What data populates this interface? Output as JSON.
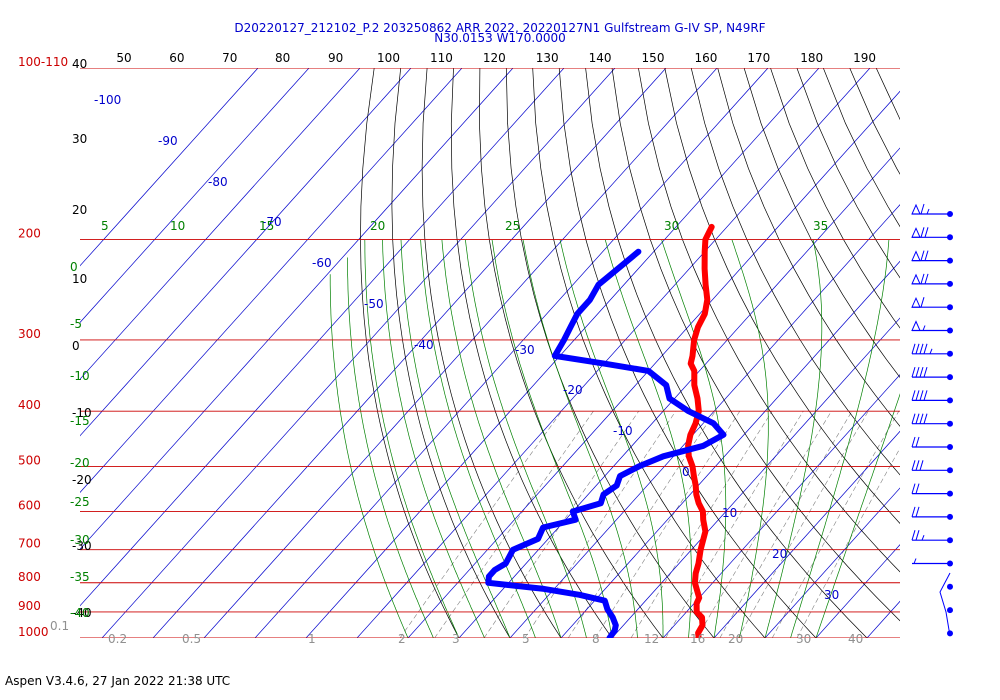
{
  "header": {
    "line1": "D20220127_212102_P.2 203250862 ARR 2022, 20220127N1 Gulfstream G-IV SP, N49RF",
    "line2": "N30.0153 W170.0000"
  },
  "footer": "Aspen V3.4.6, 27 Jan 2022  21:38 UTC",
  "chart_data": {
    "type": "line",
    "title": "D20220127_212102_P.2 203250862 ARR 2022, 20220127N1 Gulfstream G-IV SP, N49RF",
    "subtitle": "N30.0153 W170.0000",
    "pressure_labels": [
      "100-110",
      "200",
      "300",
      "400",
      "500",
      "600",
      "700",
      "800",
      "900",
      "1000"
    ],
    "top_temp_labels": [
      "50",
      "60",
      "70",
      "80",
      "90",
      "100",
      "110",
      "120",
      "130",
      "140",
      "150",
      "160",
      "170",
      "180",
      "190"
    ],
    "left_height_labels": [
      "40",
      "30",
      "20",
      "10",
      "0",
      "-10",
      "-20",
      "-30",
      "-40"
    ],
    "isotherm_labels": [
      "-100",
      "-90",
      "-80",
      "-70",
      "-60",
      "-50",
      "-40",
      "-30",
      "-20",
      "-10",
      "0",
      "10",
      "20",
      "30"
    ],
    "dry_adiabat_labels": [
      "5",
      "10",
      "15",
      "20",
      "25",
      "30",
      "35"
    ],
    "moist_adiabat_labels": [
      "0",
      "-5",
      "-10",
      "-15",
      "-20",
      "-25",
      "-30",
      "-35",
      "-40"
    ],
    "mixing_ratio_labels": [
      "0.1",
      "0.2",
      "0.5",
      "1",
      "2",
      "3",
      "5",
      "8",
      "12",
      "16",
      "20",
      "30",
      "40"
    ],
    "colors": {
      "temperature": "#ff0000",
      "dewpoint": "#0000ff",
      "isobar": "#cc0000",
      "isotherm": "#0000cc",
      "dry_adiabat": "#000000",
      "moist_adiabat": "#008000",
      "mixing_ratio": "#808080",
      "title": "#0000cc"
    },
    "series": [
      {
        "name": "",
        "variable": "temperature",
        "color": "#ff0000",
        "points": [
          [
            1000,
            17
          ],
          [
            980,
            16
          ],
          [
            950,
            15.5
          ],
          [
            920,
            14
          ],
          [
            900,
            12
          ],
          [
            870,
            10.5
          ],
          [
            850,
            10
          ],
          [
            800,
            6.5
          ],
          [
            770,
            5
          ],
          [
            740,
            3.8
          ],
          [
            700,
            1.8
          ],
          [
            650,
            -0.5
          ],
          [
            620,
            -3
          ],
          [
            600,
            -4.5
          ],
          [
            580,
            -6.8
          ],
          [
            560,
            -8.8
          ],
          [
            540,
            -10.5
          ],
          [
            520,
            -12.5
          ],
          [
            500,
            -14.5
          ],
          [
            480,
            -17
          ],
          [
            460,
            -19
          ],
          [
            440,
            -20.5
          ],
          [
            420,
            -21.5
          ],
          [
            400,
            -23
          ],
          [
            380,
            -25.5
          ],
          [
            360,
            -28.5
          ],
          [
            340,
            -31
          ],
          [
            330,
            -33
          ],
          [
            320,
            -34
          ],
          [
            300,
            -36.5
          ],
          [
            285,
            -38
          ],
          [
            270,
            -39
          ],
          [
            255,
            -41
          ],
          [
            240,
            -44
          ],
          [
            225,
            -47
          ],
          [
            210,
            -50
          ],
          [
            200,
            -52
          ],
          [
            190,
            -53
          ]
        ]
      },
      {
        "name": "",
        "variable": "dewpoint",
        "color": "#0000ff",
        "points": [
          [
            1000,
            -0.5
          ],
          [
            970,
            -0.8
          ],
          [
            950,
            -1.5
          ],
          [
            920,
            -3.5
          ],
          [
            890,
            -6
          ],
          [
            860,
            -8
          ],
          [
            840,
            -14
          ],
          [
            820,
            -22
          ],
          [
            800,
            -34
          ],
          [
            780,
            -35
          ],
          [
            760,
            -35
          ],
          [
            740,
            -34
          ],
          [
            700,
            -35
          ],
          [
            670,
            -32
          ],
          [
            640,
            -33
          ],
          [
            620,
            -28
          ],
          [
            600,
            -30
          ],
          [
            580,
            -26
          ],
          [
            560,
            -27
          ],
          [
            540,
            -26
          ],
          [
            520,
            -27
          ],
          [
            500,
            -25
          ],
          [
            480,
            -22
          ],
          [
            460,
            -16
          ],
          [
            440,
            -14
          ],
          [
            420,
            -18
          ],
          [
            400,
            -25
          ],
          [
            380,
            -31
          ],
          [
            360,
            -34
          ],
          [
            340,
            -40
          ],
          [
            330,
            -50
          ],
          [
            320,
            -61
          ],
          [
            300,
            -62
          ],
          [
            285,
            -63
          ],
          [
            270,
            -64
          ],
          [
            255,
            -64
          ],
          [
            240,
            -65
          ],
          [
            225,
            -64
          ],
          [
            210,
            -63
          ]
        ]
      }
    ],
    "wind_barbs": [
      {
        "pressure": 190,
        "speed_kt": 65
      },
      {
        "pressure": 210,
        "speed_kt": 70
      },
      {
        "pressure": 230,
        "speed_kt": 70
      },
      {
        "pressure": 250,
        "speed_kt": 70
      },
      {
        "pressure": 275,
        "speed_kt": 60
      },
      {
        "pressure": 300,
        "speed_kt": 55
      },
      {
        "pressure": 330,
        "speed_kt": 45
      },
      {
        "pressure": 365,
        "speed_kt": 40
      },
      {
        "pressure": 400,
        "speed_kt": 40
      },
      {
        "pressure": 450,
        "speed_kt": 40
      },
      {
        "pressure": 500,
        "speed_kt": 20
      },
      {
        "pressure": 560,
        "speed_kt": 30
      },
      {
        "pressure": 640,
        "speed_kt": 20
      },
      {
        "pressure": 730,
        "speed_kt": 20
      },
      {
        "pressure": 800,
        "speed_kt": 25
      },
      {
        "pressure": 850,
        "speed_kt": 5
      },
      {
        "pressure": 900,
        "speed_kt": 0
      },
      {
        "pressure": 950,
        "speed_kt": 0
      },
      {
        "pressure": 1000,
        "speed_kt": 0
      }
    ],
    "ylim": [
      1000,
      100
    ],
    "grid": true
  }
}
